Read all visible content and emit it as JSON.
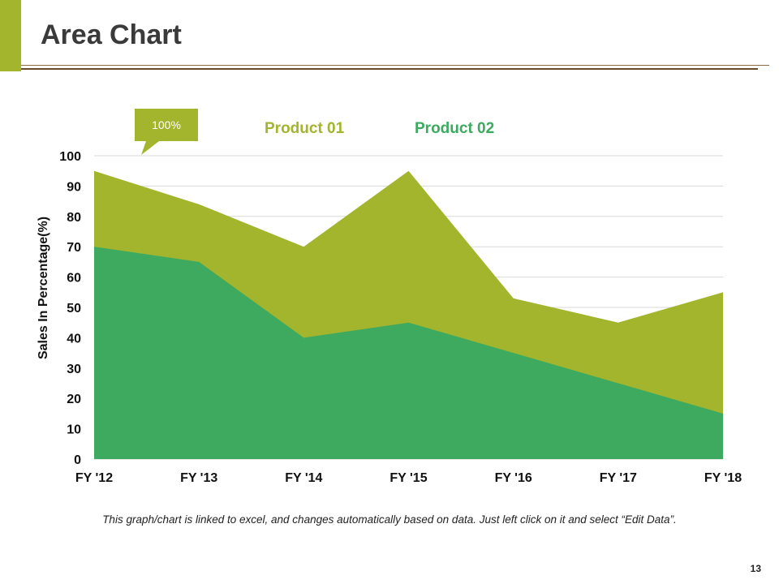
{
  "slide": {
    "title": "Area Chart",
    "footnote": "This graph/chart is linked to excel, and changes automatically based on data. Just left click on it and select “Edit Data”.",
    "page_number": "13"
  },
  "callout": {
    "text": "100%",
    "color": "#a3b52c"
  },
  "colors": {
    "accent": "#a3b52c",
    "product01": "#a3b52c",
    "product02": "#3daa60",
    "rule": "#8b6a44"
  },
  "chart_data": {
    "type": "area",
    "categories": [
      "FY '12",
      "FY '13",
      "FY '14",
      "FY '15",
      "FY '16",
      "FY '17",
      "FY '18"
    ],
    "series": [
      {
        "name": "Product 01",
        "values": [
          95,
          84,
          70,
          95,
          53,
          45,
          55
        ],
        "color": "#a3b52c"
      },
      {
        "name": "Product 02",
        "values": [
          70,
          65,
          40,
          45,
          35,
          25,
          15
        ],
        "color": "#3daa60"
      }
    ],
    "ylabel": "Sales In Percentage(%)",
    "xlabel": "",
    "ylim": [
      0,
      100
    ],
    "yticks": [
      0,
      10,
      20,
      30,
      40,
      50,
      60,
      70,
      80,
      90,
      100
    ],
    "grid": true,
    "legend": "top"
  }
}
